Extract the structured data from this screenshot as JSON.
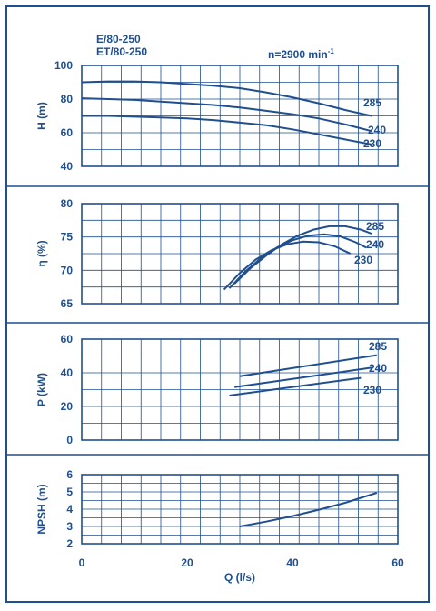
{
  "header": {
    "model_line1": "E/80-250",
    "model_line2": "ET/80-250",
    "speed_prefix": "n=2900 min",
    "speed_exp": "-1"
  },
  "chart_data": [
    {
      "type": "line",
      "panel": "head",
      "ylabel": "H (m)",
      "xlim": [
        0,
        60
      ],
      "ylim": [
        40,
        100
      ],
      "yticks": [
        40,
        60,
        80,
        100
      ],
      "grid": true,
      "series": [
        {
          "name": "285",
          "x": [
            0,
            5,
            10,
            15,
            20,
            25,
            30,
            35,
            40,
            45,
            50,
            55
          ],
          "y": [
            90,
            90.5,
            90.5,
            90,
            89,
            88,
            86.5,
            84,
            81,
            77.5,
            73.5,
            70
          ]
        },
        {
          "name": "240",
          "x": [
            0,
            5,
            10,
            15,
            20,
            25,
            30,
            35,
            40,
            45,
            50,
            55
          ],
          "y": [
            80.5,
            80,
            79.5,
            78.5,
            77.5,
            76.5,
            75,
            73,
            71,
            68.5,
            65,
            61
          ]
        },
        {
          "name": "230",
          "x": [
            0,
            5,
            10,
            15,
            20,
            25,
            30,
            35,
            40,
            45,
            50,
            55
          ],
          "y": [
            70,
            70,
            69.5,
            69,
            68.5,
            67.5,
            66,
            64.5,
            62,
            59,
            56,
            53
          ]
        }
      ]
    },
    {
      "type": "line",
      "panel": "efficiency",
      "ylabel": "η (%)",
      "xlim": [
        0,
        60
      ],
      "ylim": [
        65,
        80
      ],
      "yticks": [
        65,
        70,
        75,
        80
      ],
      "grid": true,
      "series": [
        {
          "name": "285",
          "x": [
            29,
            32,
            35,
            38,
            41,
            44,
            47,
            50,
            53,
            55
          ],
          "y": [
            68,
            70.3,
            72.2,
            73.9,
            75.2,
            76.1,
            76.6,
            76.6,
            76.1,
            75.5
          ]
        },
        {
          "name": "240",
          "x": [
            28,
            31,
            34,
            37,
            40,
            43,
            46,
            49,
            52,
            54
          ],
          "y": [
            67.3,
            69.8,
            71.8,
            73.4,
            74.5,
            75.2,
            75.4,
            75.1,
            74.2,
            73.4
          ]
        },
        {
          "name": "230",
          "x": [
            27,
            30,
            33,
            36,
            39,
            42,
            45,
            48,
            51
          ],
          "y": [
            67.1,
            69.6,
            71.6,
            73,
            73.9,
            74.3,
            74.2,
            73.6,
            72.5
          ]
        }
      ]
    },
    {
      "type": "line",
      "panel": "power",
      "ylabel": "P (kW)",
      "xlim": [
        0,
        60
      ],
      "ylim": [
        0,
        60
      ],
      "yticks": [
        0,
        20,
        40,
        60
      ],
      "grid": true,
      "series": [
        {
          "name": "285",
          "x": [
            30,
            56
          ],
          "y": [
            38,
            50.5
          ]
        },
        {
          "name": "240",
          "x": [
            29,
            55
          ],
          "y": [
            31.5,
            43
          ]
        },
        {
          "name": "230",
          "x": [
            28,
            53
          ],
          "y": [
            26.5,
            37
          ]
        }
      ]
    },
    {
      "type": "line",
      "panel": "npsh",
      "ylabel": "NPSH (m)",
      "xlabel": "Q (l/s)",
      "xlim": [
        0,
        60
      ],
      "ylim": [
        2,
        6
      ],
      "xticks": [
        0,
        20,
        40,
        60
      ],
      "yticks": [
        2,
        3,
        4,
        5,
        6
      ],
      "grid": true,
      "series": [
        {
          "name": "",
          "x": [
            30,
            35,
            40,
            45,
            50,
            56
          ],
          "y": [
            3.0,
            3.28,
            3.6,
            3.97,
            4.37,
            4.95
          ]
        }
      ]
    }
  ]
}
